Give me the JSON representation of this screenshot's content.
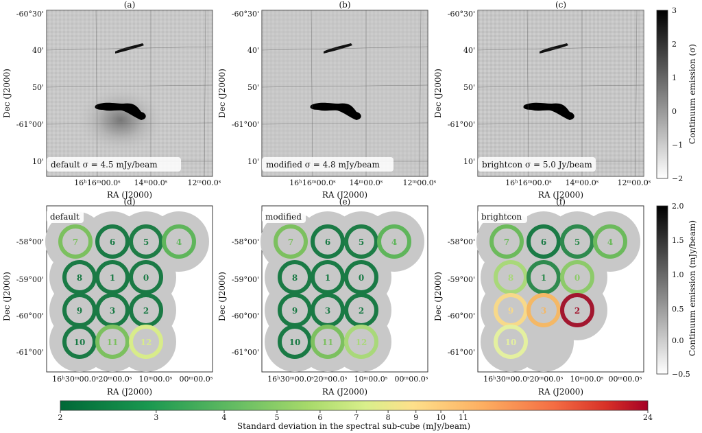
{
  "top_row": {
    "panels": [
      {
        "letter": "(a)",
        "annotation": "default σ = 4.5 mJy/beam"
      },
      {
        "letter": "(b)",
        "annotation": "modified σ = 4.8 mJy/beam"
      },
      {
        "letter": "(c)",
        "annotation": "brightcon σ = 5.0 Jy/beam"
      }
    ],
    "ylabel": "Dec (J2000)",
    "xlabel": "RA (J2000)",
    "yticks": [
      "-60°30'",
      "40'",
      "50'",
      "-61°00'",
      "10'"
    ],
    "xticks": [
      "16ʰ16ᵐ00.0ˢ",
      "14ᵐ00.0ˢ",
      "12ᵐ00.0ˢ"
    ],
    "colorbar": {
      "label": "Continuum emission (σ)",
      "ticks": [
        "3",
        "2",
        "1",
        "0",
        "−1",
        "−2"
      ]
    }
  },
  "bottom_row": {
    "panels": [
      {
        "letter": "(d)",
        "annotation": "default",
        "rings": [
          {
            "id": "7",
            "color": "#7cc05f"
          },
          {
            "id": "6",
            "color": "#1a7a45"
          },
          {
            "id": "5",
            "color": "#1e7d46"
          },
          {
            "id": "4",
            "color": "#5fb55b"
          },
          {
            "id": "8",
            "color": "#1a7a45"
          },
          {
            "id": "1",
            "color": "#1a7a45"
          },
          {
            "id": "0",
            "color": "#1a7a45"
          },
          {
            "id": "9",
            "color": "#1a7a45"
          },
          {
            "id": "3",
            "color": "#1a7a45"
          },
          {
            "id": "2",
            "color": "#1a7a45"
          },
          {
            "id": "10",
            "color": "#1a7a45"
          },
          {
            "id": "11",
            "color": "#7cc05f"
          },
          {
            "id": "12",
            "color": "#d8ec8a"
          }
        ]
      },
      {
        "letter": "(e)",
        "annotation": "modified",
        "rings": [
          {
            "id": "7",
            "color": "#7cc05f"
          },
          {
            "id": "6",
            "color": "#1a7a45"
          },
          {
            "id": "5",
            "color": "#1e7d46"
          },
          {
            "id": "4",
            "color": "#5fb55b"
          },
          {
            "id": "8",
            "color": "#1a7a45"
          },
          {
            "id": "1",
            "color": "#1a7a45"
          },
          {
            "id": "0",
            "color": "#1a7a45"
          },
          {
            "id": "9",
            "color": "#1a7a45"
          },
          {
            "id": "3",
            "color": "#1a7a45"
          },
          {
            "id": "2",
            "color": "#1a7a45"
          },
          {
            "id": "10",
            "color": "#1a7a45"
          },
          {
            "id": "11",
            "color": "#7cc05f"
          },
          {
            "id": "12",
            "color": "#a9d87a"
          }
        ]
      },
      {
        "letter": "(f)",
        "annotation": "brightcon",
        "rings": [
          {
            "id": "7",
            "color": "#6cba5c"
          },
          {
            "id": "6",
            "color": "#1a7a45"
          },
          {
            "id": "5",
            "color": "#2e8a4e"
          },
          {
            "id": "4",
            "color": "#6cba5c"
          },
          {
            "id": "8",
            "color": "#a9d87a"
          },
          {
            "id": "1",
            "color": "#2e8a4e"
          },
          {
            "id": "0",
            "color": "#8dca6a"
          },
          {
            "id": "9",
            "color": "#f7d98a"
          },
          {
            "id": "3",
            "color": "#f4b866"
          },
          {
            "id": "2",
            "color": "#a2172f"
          },
          {
            "id": "10",
            "color": "#e4f0a0"
          }
        ]
      }
    ],
    "ylabel": "Dec (J2000)",
    "xlabel": "RA (J2000)",
    "yticks": [
      "-58°00'",
      "-59°00'",
      "-60°00'",
      "-61°00'"
    ],
    "xticks": [
      "16ʰ30ᵐ00.0ˢ",
      "20ᵐ00.0ˢ",
      "10ᵐ00.0ˢ",
      "00ᵐ00.0ˢ"
    ],
    "colorbar": {
      "label": "Continuum emission (mJy/beam)",
      "ticks": [
        "2.0",
        "1.5",
        "1.0",
        "0.5",
        "0.0",
        "−0.5"
      ]
    }
  },
  "bottom_colorbar": {
    "label": "Standard deviation in the spectral sub-cube (mJy/beam)",
    "ticks": [
      "2",
      "3",
      "4",
      "5",
      "6",
      "7",
      "8",
      "9",
      "10",
      "11",
      "24"
    ],
    "min": 2,
    "max": 24,
    "scale": "log"
  }
}
